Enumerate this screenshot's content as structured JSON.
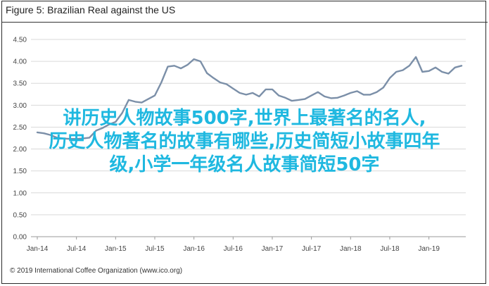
{
  "title": "Figure 5: Brazilian Real against the US",
  "overlay_text": "讲历史人物故事500字,世界上最著名的名人,\n历史人物著名的故事有哪些,历史简短小故事四年\n级,小学一年级名人故事简短50字",
  "source": "© 2019 International Coffee Organization (www.ico.org)",
  "colors": {
    "line": "#7b8fa8",
    "grid": "#d9d9d9",
    "overlay": "#1fb8e0"
  },
  "chart_data": {
    "type": "line",
    "title": "Figure 5: Brazilian Real against the US",
    "xlabel": "",
    "ylabel": "",
    "ylim": [
      0.0,
      4.5
    ],
    "yticks": [
      "0.00",
      "0.50",
      "1.00",
      "1.50",
      "2.00",
      "2.50",
      "3.00",
      "3.50",
      "4.00",
      "4.50"
    ],
    "xticks": [
      "Jan-14",
      "Jul-14",
      "Jan-15",
      "Jul-15",
      "Jan-16",
      "Jul-16",
      "Jan-17",
      "Jul-17",
      "Jan-18",
      "Jul-18",
      "Jan-19"
    ],
    "grid": "horizontal",
    "series": [
      {
        "values": [
          2.38,
          2.36,
          2.32,
          2.26,
          2.24,
          2.23,
          2.23,
          2.24,
          2.26,
          2.42,
          2.48,
          2.56,
          2.62,
          2.82,
          3.12,
          3.08,
          3.06,
          3.14,
          3.22,
          3.52,
          3.88,
          3.9,
          3.84,
          3.92,
          4.05,
          4.0,
          3.73,
          3.62,
          3.52,
          3.48,
          3.38,
          3.28,
          3.24,
          3.28,
          3.2,
          3.36,
          3.36,
          3.22,
          3.17,
          3.1,
          3.12,
          3.14,
          3.22,
          3.3,
          3.2,
          3.16,
          3.17,
          3.22,
          3.28,
          3.32,
          3.24,
          3.24,
          3.3,
          3.4,
          3.62,
          3.76,
          3.8,
          3.9,
          4.1,
          3.76,
          3.78,
          3.86,
          3.76,
          3.72,
          3.86,
          3.9
        ]
      }
    ]
  }
}
